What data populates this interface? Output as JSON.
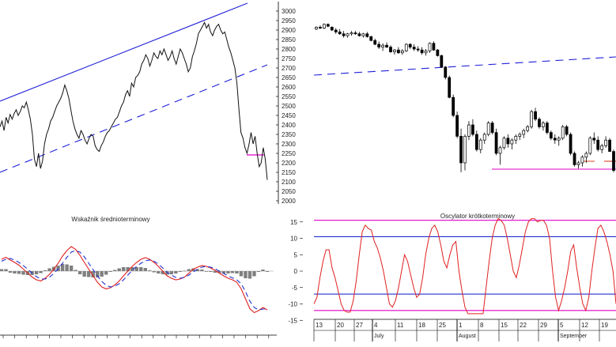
{
  "colors": {
    "price_line": "#111111",
    "trend_line": "#1f1fd8",
    "magenta": "#e000c8",
    "osc_line": "#e02020",
    "signal_line": "#2030d0",
    "histogram": "#7f7f7f",
    "axis": "#000000"
  },
  "chart_data": [
    {
      "id": "long_term_price",
      "type": "line",
      "series_name": "",
      "values": [
        2390,
        2420,
        2370,
        2440,
        2410,
        2455,
        2430,
        2460,
        2480,
        2450,
        2470,
        2500,
        2490,
        2520,
        2480,
        2430,
        2350,
        2220,
        2180,
        2250,
        2170,
        2210,
        2300,
        2350,
        2380,
        2420,
        2440,
        2470,
        2500,
        2520,
        2540,
        2570,
        2610,
        2580,
        2540,
        2480,
        2420,
        2380,
        2350,
        2330,
        2370,
        2350,
        2320,
        2300,
        2330,
        2350,
        2340,
        2290,
        2270,
        2260,
        2290,
        2310,
        2340,
        2360,
        2370,
        2390,
        2410,
        2430,
        2440,
        2470,
        2500,
        2520,
        2560,
        2580,
        2550,
        2620,
        2600,
        2650,
        2660,
        2680,
        2720,
        2740,
        2770,
        2750,
        2710,
        2740,
        2780,
        2760,
        2750,
        2790,
        2770,
        2800,
        2770,
        2740,
        2760,
        2790,
        2750,
        2720,
        2760,
        2800,
        2780,
        2750,
        2720,
        2680,
        2700,
        2760,
        2790,
        2830,
        2880,
        2900,
        2920,
        2940,
        2910,
        2930,
        2890,
        2870,
        2900,
        2920,
        2930,
        2900,
        2880,
        2890,
        2850,
        2810,
        2780,
        2740,
        2700,
        2620,
        2480,
        2360,
        2330,
        2280,
        2250,
        2300,
        2360,
        2300,
        2340,
        2250,
        2180,
        2200,
        2280,
        2220,
        2110
      ]
    },
    {
      "id": "medium_term_indicator",
      "type": "line",
      "title": "Wskaźnik średnioterminowy",
      "series": [
        {
          "values": [
            0.3,
            0.35,
            0.28,
            0.22,
            0.15,
            0.05,
            -0.05,
            -0.15,
            -0.22,
            -0.25,
            -0.18,
            -0.08,
            0.05,
            0.2,
            0.38,
            0.52,
            0.62,
            0.55,
            0.4,
            0.22,
            0.05,
            -0.12,
            -0.28,
            -0.4,
            -0.45,
            -0.42,
            -0.35,
            -0.25,
            -0.12,
            0.0,
            0.12,
            0.22,
            0.3,
            0.34,
            0.3,
            0.22,
            0.12,
            0.0,
            -0.12,
            -0.18,
            -0.22,
            -0.2,
            -0.15,
            -0.05,
            0.05,
            0.1,
            0.14,
            0.12,
            0.08,
            0.02,
            -0.05,
            -0.12,
            -0.18,
            -0.22,
            -0.28,
            -0.45,
            -0.7,
            -0.95,
            -1.05,
            -1.0,
            -0.92,
            -0.98
          ]
        },
        {
          "values": [
            0.25,
            0.3,
            0.32,
            0.28,
            0.22,
            0.14,
            0.05,
            -0.05,
            -0.14,
            -0.2,
            -0.2,
            -0.15,
            -0.06,
            0.06,
            0.2,
            0.35,
            0.48,
            0.52,
            0.48,
            0.36,
            0.2,
            0.04,
            -0.12,
            -0.26,
            -0.36,
            -0.4,
            -0.38,
            -0.32,
            -0.22,
            -0.1,
            0.02,
            0.12,
            0.2,
            0.26,
            0.28,
            0.25,
            0.18,
            0.08,
            -0.03,
            -0.1,
            -0.16,
            -0.18,
            -0.16,
            -0.1,
            -0.02,
            0.05,
            0.1,
            0.12,
            0.1,
            0.06,
            0.0,
            -0.06,
            -0.12,
            -0.17,
            -0.22,
            -0.32,
            -0.52,
            -0.76,
            -0.92,
            -0.98,
            -0.96,
            -0.96
          ]
        },
        {
          "values": [
            0.05,
            0.05,
            -0.04,
            -0.06,
            -0.07,
            -0.09,
            -0.1,
            -0.1,
            -0.08,
            -0.05,
            0.02,
            0.07,
            0.11,
            0.14,
            0.18,
            0.17,
            0.14,
            0.03,
            -0.08,
            -0.14,
            -0.15,
            -0.16,
            -0.16,
            -0.14,
            -0.09,
            -0.02,
            0.03,
            0.07,
            0.1,
            0.1,
            0.1,
            0.1,
            0.1,
            0.08,
            0.02,
            -0.03,
            -0.06,
            -0.08,
            -0.09,
            -0.08,
            -0.06,
            -0.02,
            0.01,
            0.05,
            0.07,
            0.05,
            0.04,
            0.0,
            -0.02,
            -0.04,
            -0.05,
            -0.06,
            -0.06,
            -0.05,
            -0.06,
            -0.13,
            -0.18,
            -0.19,
            -0.13,
            -0.02,
            0.04,
            -0.02
          ]
        }
      ]
    },
    {
      "id": "daily_candles",
      "type": "candlestick",
      "y_ticks": [
        "3000",
        "2950",
        "2900",
        "2850",
        "2800",
        "2750",
        "2700",
        "2650",
        "2600",
        "2550",
        "2500",
        "2450",
        "2400",
        "2350",
        "2300",
        "2250",
        "2200",
        "2150",
        "2100",
        "2050",
        "2000"
      ],
      "candles": [
        [
          2905,
          2920,
          2900,
          2915
        ],
        [
          2915,
          2925,
          2905,
          2910
        ],
        [
          2910,
          2935,
          2905,
          2930
        ],
        [
          2930,
          2935,
          2915,
          2920
        ],
        [
          2915,
          2920,
          2895,
          2900
        ],
        [
          2900,
          2910,
          2880,
          2890
        ],
        [
          2890,
          2905,
          2875,
          2880
        ],
        [
          2880,
          2895,
          2860,
          2870
        ],
        [
          2870,
          2885,
          2860,
          2880
        ],
        [
          2880,
          2895,
          2870,
          2885
        ],
        [
          2885,
          2895,
          2875,
          2880
        ],
        [
          2880,
          2890,
          2865,
          2870
        ],
        [
          2870,
          2885,
          2860,
          2880
        ],
        [
          2880,
          2890,
          2860,
          2865
        ],
        [
          2865,
          2870,
          2840,
          2845
        ],
        [
          2845,
          2855,
          2820,
          2825
        ],
        [
          2825,
          2840,
          2800,
          2810
        ],
        [
          2810,
          2830,
          2790,
          2820
        ],
        [
          2820,
          2835,
          2805,
          2810
        ],
        [
          2810,
          2820,
          2780,
          2785
        ],
        [
          2785,
          2800,
          2770,
          2795
        ],
        [
          2795,
          2810,
          2775,
          2780
        ],
        [
          2780,
          2800,
          2770,
          2790
        ],
        [
          2790,
          2830,
          2785,
          2825
        ],
        [
          2825,
          2830,
          2800,
          2810
        ],
        [
          2810,
          2825,
          2790,
          2800
        ],
        [
          2800,
          2815,
          2785,
          2795
        ],
        [
          2795,
          2810,
          2770,
          2780
        ],
        [
          2780,
          2800,
          2765,
          2790
        ],
        [
          2790,
          2835,
          2780,
          2830
        ],
        [
          2830,
          2840,
          2790,
          2795
        ],
        [
          2795,
          2800,
          2760,
          2765
        ],
        [
          2765,
          2770,
          2700,
          2705
        ],
        [
          2705,
          2710,
          2640,
          2650
        ],
        [
          2650,
          2660,
          2540,
          2545
        ],
        [
          2545,
          2560,
          2440,
          2450
        ],
        [
          2450,
          2470,
          2330,
          2340
        ],
        [
          2340,
          2380,
          2150,
          2200
        ],
        [
          2200,
          2350,
          2160,
          2340
        ],
        [
          2340,
          2420,
          2320,
          2400
        ],
        [
          2400,
          2430,
          2340,
          2350
        ],
        [
          2350,
          2370,
          2260,
          2270
        ],
        [
          2270,
          2330,
          2250,
          2320
        ],
        [
          2320,
          2360,
          2300,
          2350
        ],
        [
          2350,
          2420,
          2340,
          2410
        ],
        [
          2410,
          2420,
          2350,
          2360
        ],
        [
          2360,
          2380,
          2240,
          2250
        ],
        [
          2250,
          2290,
          2190,
          2280
        ],
        [
          2280,
          2340,
          2270,
          2330
        ],
        [
          2330,
          2350,
          2280,
          2300
        ],
        [
          2300,
          2330,
          2270,
          2320
        ],
        [
          2320,
          2350,
          2300,
          2340
        ],
        [
          2340,
          2360,
          2320,
          2350
        ],
        [
          2350,
          2380,
          2330,
          2370
        ],
        [
          2370,
          2400,
          2360,
          2390
        ],
        [
          2390,
          2480,
          2380,
          2470
        ],
        [
          2470,
          2490,
          2420,
          2430
        ],
        [
          2430,
          2440,
          2380,
          2390
        ],
        [
          2390,
          2420,
          2370,
          2410
        ],
        [
          2410,
          2420,
          2350,
          2360
        ],
        [
          2360,
          2370,
          2320,
          2330
        ],
        [
          2330,
          2350,
          2300,
          2320
        ],
        [
          2320,
          2340,
          2290,
          2330
        ],
        [
          2330,
          2400,
          2320,
          2390
        ],
        [
          2390,
          2400,
          2340,
          2350
        ],
        [
          2350,
          2360,
          2240,
          2250
        ],
        [
          2250,
          2260,
          2180,
          2190
        ],
        [
          2190,
          2210,
          2170,
          2200
        ],
        [
          2200,
          2240,
          2180,
          2230
        ],
        [
          2230,
          2260,
          2200,
          2250
        ],
        [
          2250,
          2340,
          2240,
          2330
        ],
        [
          2330,
          2360,
          2300,
          2320
        ],
        [
          2320,
          2340,
          2260,
          2270
        ],
        [
          2270,
          2300,
          2250,
          2290
        ],
        [
          2290,
          2340,
          2280,
          2320
        ],
        [
          2320,
          2330,
          2260,
          2260
        ],
        [
          2260,
          2270,
          2150,
          2160
        ]
      ],
      "support_line": 2135,
      "right_stubs": [
        2170,
        2170
      ]
    },
    {
      "id": "short_term_oscillator",
      "type": "line",
      "title": "Oscylator krótkoterminowy",
      "y_ticks": [
        "15",
        "10",
        "5",
        "0",
        "-5",
        "-10",
        "-15"
      ],
      "levels": [
        15.5,
        10.5,
        -7,
        -12
      ],
      "values": [
        -10,
        -8,
        -2,
        3,
        6.5,
        6.5,
        1,
        -2,
        -6,
        -10,
        -12,
        -12.5,
        -12.5,
        -9,
        -3,
        5,
        12,
        14,
        13,
        12.5,
        9,
        7,
        4,
        0,
        -5,
        -10,
        -11,
        -9,
        -5,
        0,
        5,
        3,
        -1,
        -5,
        -8,
        -7,
        -2,
        5,
        10,
        13,
        14,
        12,
        8,
        3,
        1,
        5,
        8,
        9,
        0,
        -6,
        -11,
        -13,
        -13,
        -13,
        -13,
        -13,
        -13,
        -5,
        3,
        10,
        14,
        16,
        15.5,
        14,
        10,
        5,
        0,
        -2,
        2,
        7,
        12,
        15,
        16,
        16,
        15,
        15.5,
        15.5,
        14,
        10,
        0,
        -8,
        -12,
        -9,
        -5,
        0,
        6,
        8,
        1,
        -5,
        -10,
        -12,
        -8,
        0,
        7,
        13,
        14,
        12,
        9,
        5,
        0,
        -10
      ]
    },
    {
      "id": "daily_date_axis",
      "day_labels": [
        "13",
        "20",
        "27",
        "4",
        "11",
        "18",
        "25",
        "1",
        "8",
        "15",
        "22",
        "29",
        "5",
        "12",
        "19"
      ],
      "month_labels": [
        "July",
        "August",
        "September"
      ]
    }
  ]
}
